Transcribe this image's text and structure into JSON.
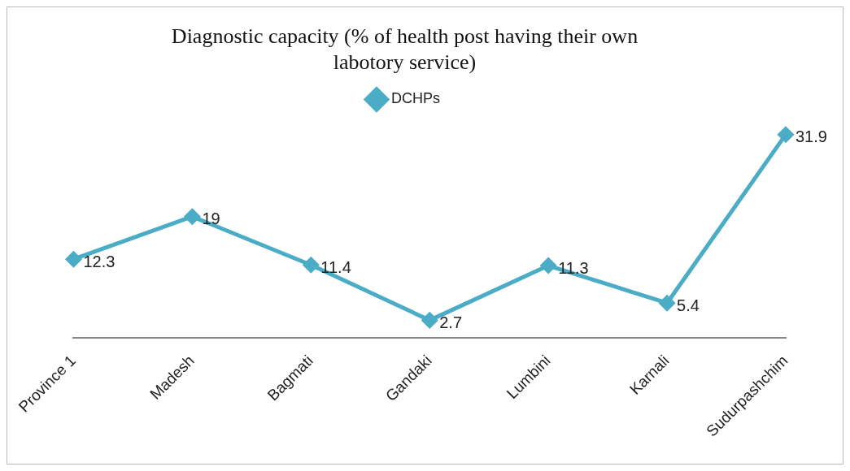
{
  "chart_data": {
    "type": "line",
    "title": "Diagnostic capacity (% of health post having their own labotory service)",
    "categories": [
      "Province 1",
      "Madesh",
      "Bagmati",
      "Gandaki",
      "Lumbini",
      "Karnali",
      "Sudurpashchim"
    ],
    "series": [
      {
        "name": "DCHPs",
        "color": "#4bacc6",
        "values": [
          12.3,
          19,
          11.4,
          2.7,
          11.3,
          5.4,
          31.9
        ]
      }
    ],
    "tick_labels": "x",
    "grid": false,
    "legend": "top",
    "marker": "diamond",
    "line_style": "solid",
    "data_labels": true
  }
}
